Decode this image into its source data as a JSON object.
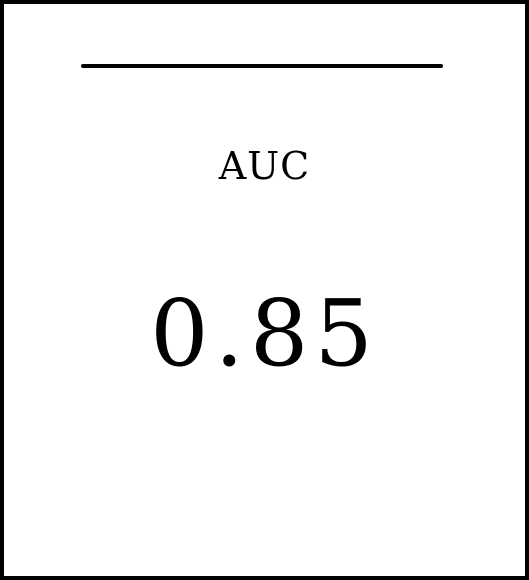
{
  "metric": {
    "label": "AUC",
    "value": "0.85"
  },
  "colors": {
    "border": "#000000",
    "text": "#000000",
    "background": "#ffffff"
  }
}
